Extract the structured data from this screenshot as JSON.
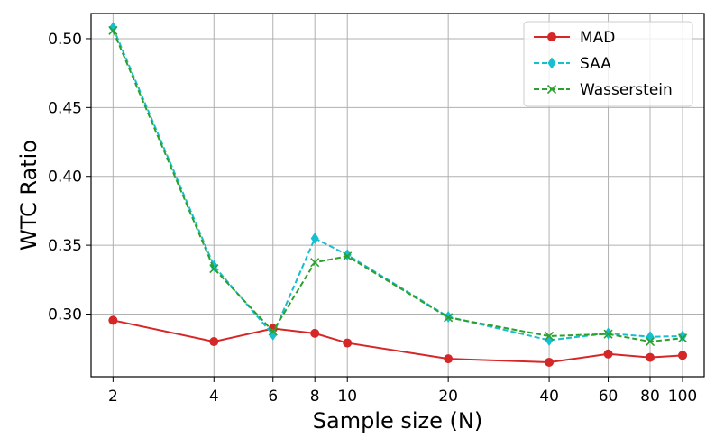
{
  "chart_data": {
    "type": "line",
    "xlabel": "Sample size (N)",
    "ylabel": "WTC Ratio",
    "x_scale": "log",
    "x": [
      2,
      4,
      6,
      8,
      10,
      20,
      40,
      60,
      80,
      100
    ],
    "x_tick_labels": [
      "2",
      "4",
      "6",
      "8",
      "10",
      "20",
      "40",
      "60",
      "80",
      "100"
    ],
    "y_ticks": [
      0.3,
      0.35,
      0.4,
      0.45,
      0.5
    ],
    "y_tick_labels": [
      "0.30",
      "0.35",
      "0.40",
      "0.45",
      "0.50"
    ],
    "xlim": [
      1.72,
      116
    ],
    "ylim": [
      0.2545,
      0.5183
    ],
    "grid": true,
    "legend_position": "top-right",
    "series": [
      {
        "name": "MAD",
        "color": "#d62728",
        "line_style": "solid",
        "marker": "circle",
        "values": [
          0.2955,
          0.28,
          0.2895,
          0.286,
          0.279,
          0.2675,
          0.265,
          0.271,
          0.2685,
          0.27
        ]
      },
      {
        "name": "SAA",
        "color": "#17becf",
        "line_style": "dashed",
        "marker": "diamond",
        "values": [
          0.508,
          0.335,
          0.285,
          0.355,
          0.343,
          0.298,
          0.281,
          0.286,
          0.2835,
          0.284
        ]
      },
      {
        "name": "Wasserstein",
        "color": "#2ca02c",
        "line_style": "dashed",
        "marker": "x",
        "values": [
          0.506,
          0.333,
          0.2875,
          0.3375,
          0.342,
          0.2975,
          0.284,
          0.2855,
          0.28,
          0.2825
        ]
      }
    ]
  }
}
